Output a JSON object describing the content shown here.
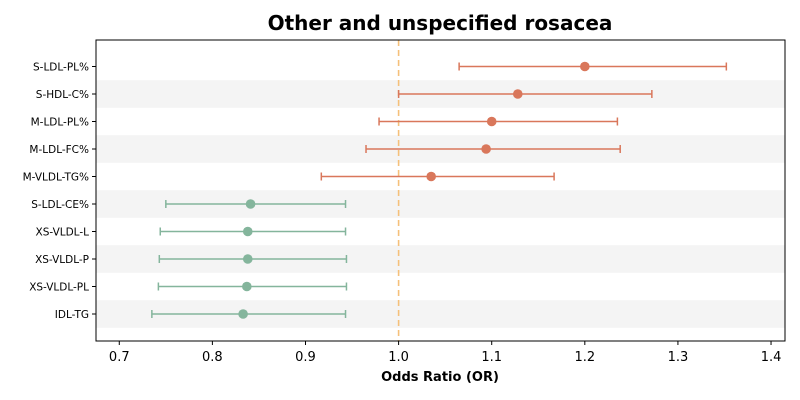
{
  "chart_data": {
    "type": "forest",
    "title": "Other and unspecified rosacea",
    "xlabel": "Odds Ratio (OR)",
    "ylabel": "",
    "xlim": [
      0.675,
      1.415
    ],
    "xticks": [
      0.7,
      0.8,
      0.9,
      1.0,
      1.1,
      1.2,
      1.3,
      1.4
    ],
    "xtick_labels": [
      "0.7",
      "0.8",
      "0.9",
      "1.0",
      "1.1",
      "1.2",
      "1.3",
      "1.4"
    ],
    "reference_line": 1.0,
    "alternating_row_shading": true,
    "grid": false,
    "legend": "none",
    "colors": {
      "positive": "#d9775b",
      "negative": "#84b59c",
      "reference": "#f5c07a",
      "row_shade": "#f4f4f4",
      "axis": "#000000"
    },
    "rows": [
      {
        "label": "S-LDL-PL%",
        "or": 1.2,
        "lower": 1.065,
        "upper": 1.352,
        "direction": "positive"
      },
      {
        "label": "S-HDL-C%",
        "or": 1.128,
        "lower": 1.0,
        "upper": 1.272,
        "direction": "positive"
      },
      {
        "label": "M-LDL-PL%",
        "or": 1.1,
        "lower": 0.979,
        "upper": 1.235,
        "direction": "positive"
      },
      {
        "label": "M-LDL-FC%",
        "or": 1.094,
        "lower": 0.965,
        "upper": 1.238,
        "direction": "positive"
      },
      {
        "label": "M-VLDL-TG%",
        "or": 1.035,
        "lower": 0.917,
        "upper": 1.167,
        "direction": "positive"
      },
      {
        "label": "S-LDL-CE%",
        "or": 0.841,
        "lower": 0.75,
        "upper": 0.943,
        "direction": "negative"
      },
      {
        "label": "XS-VLDL-L",
        "or": 0.838,
        "lower": 0.744,
        "upper": 0.943,
        "direction": "negative"
      },
      {
        "label": "XS-VLDL-P",
        "or": 0.838,
        "lower": 0.743,
        "upper": 0.944,
        "direction": "negative"
      },
      {
        "label": "XS-VLDL-PL",
        "or": 0.837,
        "lower": 0.742,
        "upper": 0.944,
        "direction": "negative"
      },
      {
        "label": "IDL-TG",
        "or": 0.833,
        "lower": 0.735,
        "upper": 0.943,
        "direction": "negative"
      }
    ]
  }
}
